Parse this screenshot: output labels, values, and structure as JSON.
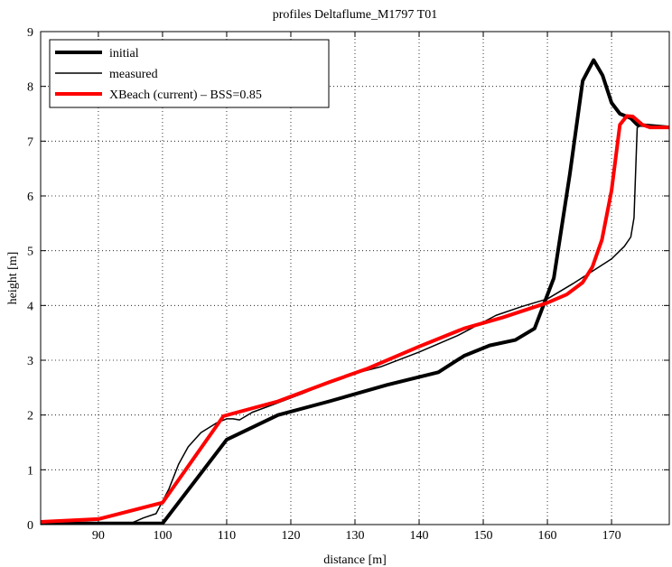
{
  "chart_data": {
    "type": "line",
    "title": "profiles Deltaflume_M1797 T01",
    "xlabel": "distance [m]",
    "ylabel": "height [m]",
    "xlim": [
      81,
      179
    ],
    "ylim": [
      0,
      9
    ],
    "xticks": [
      90,
      100,
      110,
      120,
      130,
      140,
      150,
      160,
      170
    ],
    "yticks": [
      0,
      1,
      2,
      3,
      4,
      5,
      6,
      7,
      8,
      9
    ],
    "grid": true,
    "legend_position": "top-left",
    "series": [
      {
        "name": "initial",
        "color": "#000000",
        "width": 4,
        "points": [
          [
            81,
            0.02
          ],
          [
            100,
            0.02
          ],
          [
            110,
            1.55
          ],
          [
            118,
            2.0
          ],
          [
            126,
            2.25
          ],
          [
            135,
            2.55
          ],
          [
            143,
            2.78
          ],
          [
            147,
            3.08
          ],
          [
            151,
            3.27
          ],
          [
            155,
            3.37
          ],
          [
            158,
            3.58
          ],
          [
            161,
            4.5
          ],
          [
            163.5,
            6.4
          ],
          [
            165.5,
            8.1
          ],
          [
            167.2,
            8.48
          ],
          [
            168.6,
            8.2
          ],
          [
            170,
            7.7
          ],
          [
            171.3,
            7.5
          ],
          [
            173,
            7.42
          ],
          [
            174,
            7.3
          ],
          [
            179,
            7.25
          ]
        ]
      },
      {
        "name": "measured",
        "color": "#000000",
        "width": 1.5,
        "points": [
          [
            81,
            0.02
          ],
          [
            95,
            0.02
          ],
          [
            97,
            0.12
          ],
          [
            99,
            0.2
          ],
          [
            101,
            0.65
          ],
          [
            102.5,
            1.1
          ],
          [
            104,
            1.42
          ],
          [
            106,
            1.68
          ],
          [
            108.5,
            1.86
          ],
          [
            110,
            1.93
          ],
          [
            111,
            1.93
          ],
          [
            112,
            1.91
          ],
          [
            114,
            2.05
          ],
          [
            117,
            2.18
          ],
          [
            122,
            2.4
          ],
          [
            128,
            2.7
          ],
          [
            134,
            2.88
          ],
          [
            140,
            3.15
          ],
          [
            146,
            3.45
          ],
          [
            152,
            3.82
          ],
          [
            156,
            3.98
          ],
          [
            160,
            4.12
          ],
          [
            164,
            4.4
          ],
          [
            168,
            4.7
          ],
          [
            170,
            4.85
          ],
          [
            172,
            5.08
          ],
          [
            173,
            5.25
          ],
          [
            173.5,
            5.6
          ],
          [
            173.8,
            6.6
          ],
          [
            174,
            7.25
          ],
          [
            174.5,
            7.28
          ],
          [
            179,
            7.25
          ]
        ]
      },
      {
        "name": "XBeach (current) – BSS=0.85",
        "color": "#ff0000",
        "width": 4,
        "points": [
          [
            81,
            0.05
          ],
          [
            90,
            0.1
          ],
          [
            100,
            0.4
          ],
          [
            109.5,
            1.98
          ],
          [
            118,
            2.25
          ],
          [
            126,
            2.6
          ],
          [
            132,
            2.85
          ],
          [
            140,
            3.25
          ],
          [
            147,
            3.58
          ],
          [
            153,
            3.78
          ],
          [
            160,
            4.05
          ],
          [
            163,
            4.2
          ],
          [
            165.5,
            4.42
          ],
          [
            167,
            4.7
          ],
          [
            168.5,
            5.2
          ],
          [
            170,
            6.1
          ],
          [
            171.3,
            7.3
          ],
          [
            172.4,
            7.46
          ],
          [
            173.3,
            7.45
          ],
          [
            174.8,
            7.3
          ],
          [
            176,
            7.25
          ],
          [
            179,
            7.25
          ]
        ]
      }
    ]
  }
}
